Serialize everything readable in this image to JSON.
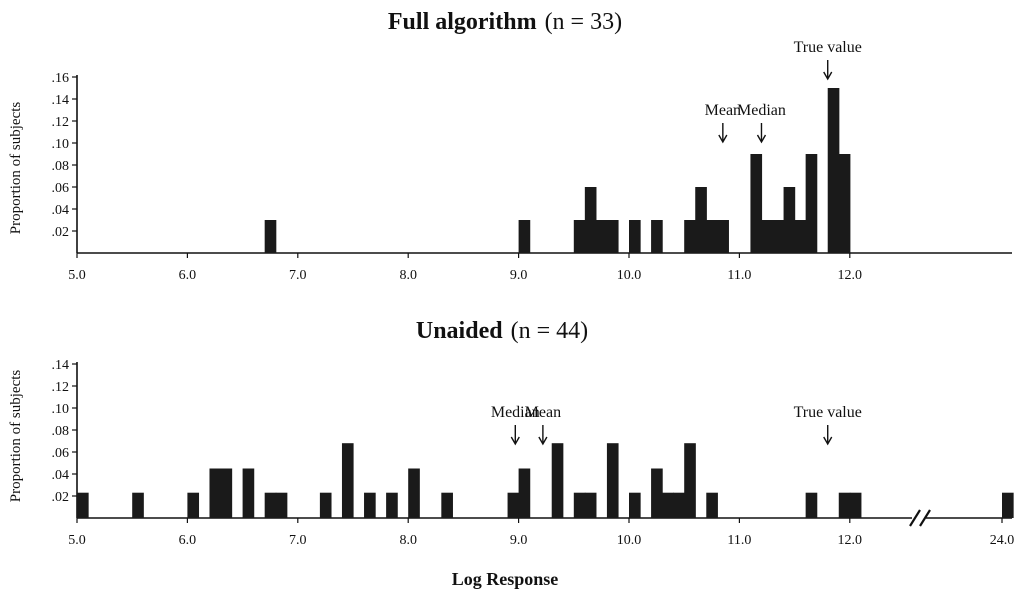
{
  "chart_data": [
    {
      "type": "bar",
      "title": "Full algorithm",
      "title_n": "(n = 33)",
      "ylabel": "Proportion of subjects",
      "xlabel": "",
      "xlim": [
        5.0,
        13.8
      ],
      "ylim": [
        0,
        0.16
      ],
      "x_ticks": [
        "5.0",
        "6.0",
        "7.0",
        "8.0",
        "9.0",
        "10.0",
        "11.0",
        "12.0"
      ],
      "y_ticks": [
        ".02",
        ".04",
        ".06",
        ".08",
        ".10",
        ".12",
        ".14",
        ".16"
      ],
      "bin_width": 0.1,
      "bars": [
        {
          "x": 6.7,
          "y": 0.03
        },
        {
          "x": 9.0,
          "y": 0.03
        },
        {
          "x": 9.5,
          "y": 0.03
        },
        {
          "x": 9.6,
          "y": 0.06
        },
        {
          "x": 9.7,
          "y": 0.03
        },
        {
          "x": 9.8,
          "y": 0.03
        },
        {
          "x": 10.0,
          "y": 0.03
        },
        {
          "x": 10.2,
          "y": 0.03
        },
        {
          "x": 10.5,
          "y": 0.03
        },
        {
          "x": 10.6,
          "y": 0.06
        },
        {
          "x": 10.7,
          "y": 0.03
        },
        {
          "x": 10.8,
          "y": 0.03
        },
        {
          "x": 11.1,
          "y": 0.09
        },
        {
          "x": 11.2,
          "y": 0.03
        },
        {
          "x": 11.3,
          "y": 0.03
        },
        {
          "x": 11.4,
          "y": 0.06
        },
        {
          "x": 11.5,
          "y": 0.03
        },
        {
          "x": 11.6,
          "y": 0.09
        },
        {
          "x": 11.8,
          "y": 0.15
        },
        {
          "x": 11.9,
          "y": 0.09
        }
      ],
      "annotations": [
        {
          "label": "Mean",
          "x": 10.85
        },
        {
          "label": "Median",
          "x": 11.2
        },
        {
          "label": "True value",
          "x": 11.8
        }
      ]
    },
    {
      "type": "bar",
      "title": "Unaided",
      "title_n": "(n = 44)",
      "ylabel": "Proportion of subjects",
      "xlabel": "Log Response",
      "xlim": [
        5.0,
        24.0
      ],
      "axis_break": "between 12.0 and 24.0",
      "ylim": [
        0,
        0.14
      ],
      "x_ticks": [
        "5.0",
        "6.0",
        "7.0",
        "8.0",
        "9.0",
        "10.0",
        "11.0",
        "12.0",
        "24.0"
      ],
      "y_ticks": [
        ".02",
        ".04",
        ".06",
        ".08",
        ".10",
        ".12",
        ".14"
      ],
      "bin_width": 0.1,
      "bars": [
        {
          "x": 5.0,
          "y": 0.023
        },
        {
          "x": 5.5,
          "y": 0.023
        },
        {
          "x": 6.0,
          "y": 0.023
        },
        {
          "x": 6.2,
          "y": 0.045
        },
        {
          "x": 6.3,
          "y": 0.045
        },
        {
          "x": 6.5,
          "y": 0.045
        },
        {
          "x": 6.7,
          "y": 0.023
        },
        {
          "x": 6.8,
          "y": 0.023
        },
        {
          "x": 7.2,
          "y": 0.023
        },
        {
          "x": 7.4,
          "y": 0.068
        },
        {
          "x": 7.6,
          "y": 0.023
        },
        {
          "x": 7.8,
          "y": 0.023
        },
        {
          "x": 8.0,
          "y": 0.045
        },
        {
          "x": 8.3,
          "y": 0.023
        },
        {
          "x": 8.9,
          "y": 0.023
        },
        {
          "x": 9.0,
          "y": 0.045
        },
        {
          "x": 9.3,
          "y": 0.068
        },
        {
          "x": 9.5,
          "y": 0.023
        },
        {
          "x": 9.6,
          "y": 0.023
        },
        {
          "x": 9.8,
          "y": 0.068
        },
        {
          "x": 10.0,
          "y": 0.023
        },
        {
          "x": 10.2,
          "y": 0.045
        },
        {
          "x": 10.3,
          "y": 0.023
        },
        {
          "x": 10.4,
          "y": 0.023
        },
        {
          "x": 10.5,
          "y": 0.068
        },
        {
          "x": 10.7,
          "y": 0.023
        },
        {
          "x": 11.6,
          "y": 0.023
        },
        {
          "x": 11.9,
          "y": 0.023
        },
        {
          "x": 12.0,
          "y": 0.023
        },
        {
          "x": 24.0,
          "y": 0.023
        }
      ],
      "annotations": [
        {
          "label": "Median",
          "x": 8.97
        },
        {
          "label": "Mean",
          "x": 9.22
        },
        {
          "label": "True value",
          "x": 11.8
        }
      ]
    }
  ]
}
